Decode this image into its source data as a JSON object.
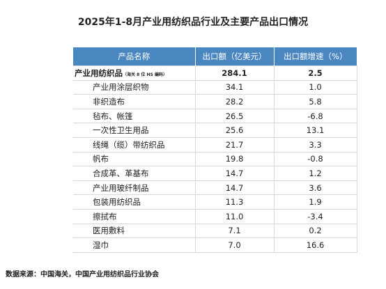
{
  "title": "2025年1-8月产业用纺织品行业及主要产品出口情况",
  "table": {
    "headers": [
      "产品名称",
      "出口额（亿美元）",
      "出口额增速（%）"
    ],
    "total": {
      "name": "产业用纺织品",
      "note": "（海关 8 位 HS 编码）",
      "value": "284.1",
      "growth": "2.5"
    },
    "rows": [
      {
        "name": "产业用涂层织物",
        "value": "34.1",
        "growth": "1.0"
      },
      {
        "name": "非织造布",
        "value": "28.2",
        "growth": "5.8"
      },
      {
        "name": "毡布、帐篷",
        "value": "26.5",
        "growth": "-6.8"
      },
      {
        "name": "一次性卫生用品",
        "value": "25.6",
        "growth": "13.1"
      },
      {
        "name": "线绳（缆）带纺织品",
        "value": "21.7",
        "growth": "3.3"
      },
      {
        "name": "帆布",
        "value": "19.8",
        "growth": "-0.8"
      },
      {
        "name": "合成革、革基布",
        "value": "14.7",
        "growth": "1.2"
      },
      {
        "name": "产业用玻纤制品",
        "value": "14.7",
        "growth": "3.6"
      },
      {
        "name": "包装用纺织品",
        "value": "11.3",
        "growth": "1.9"
      },
      {
        "name": "擦拭布",
        "value": "11.0",
        "growth": "-3.4"
      },
      {
        "name": "医用敷料",
        "value": "7.1",
        "growth": "0.2"
      },
      {
        "name": "湿巾",
        "value": "7.0",
        "growth": "16.6"
      }
    ]
  },
  "source": "数据来源：中国海关，中国产业用纺织品行业协会"
}
